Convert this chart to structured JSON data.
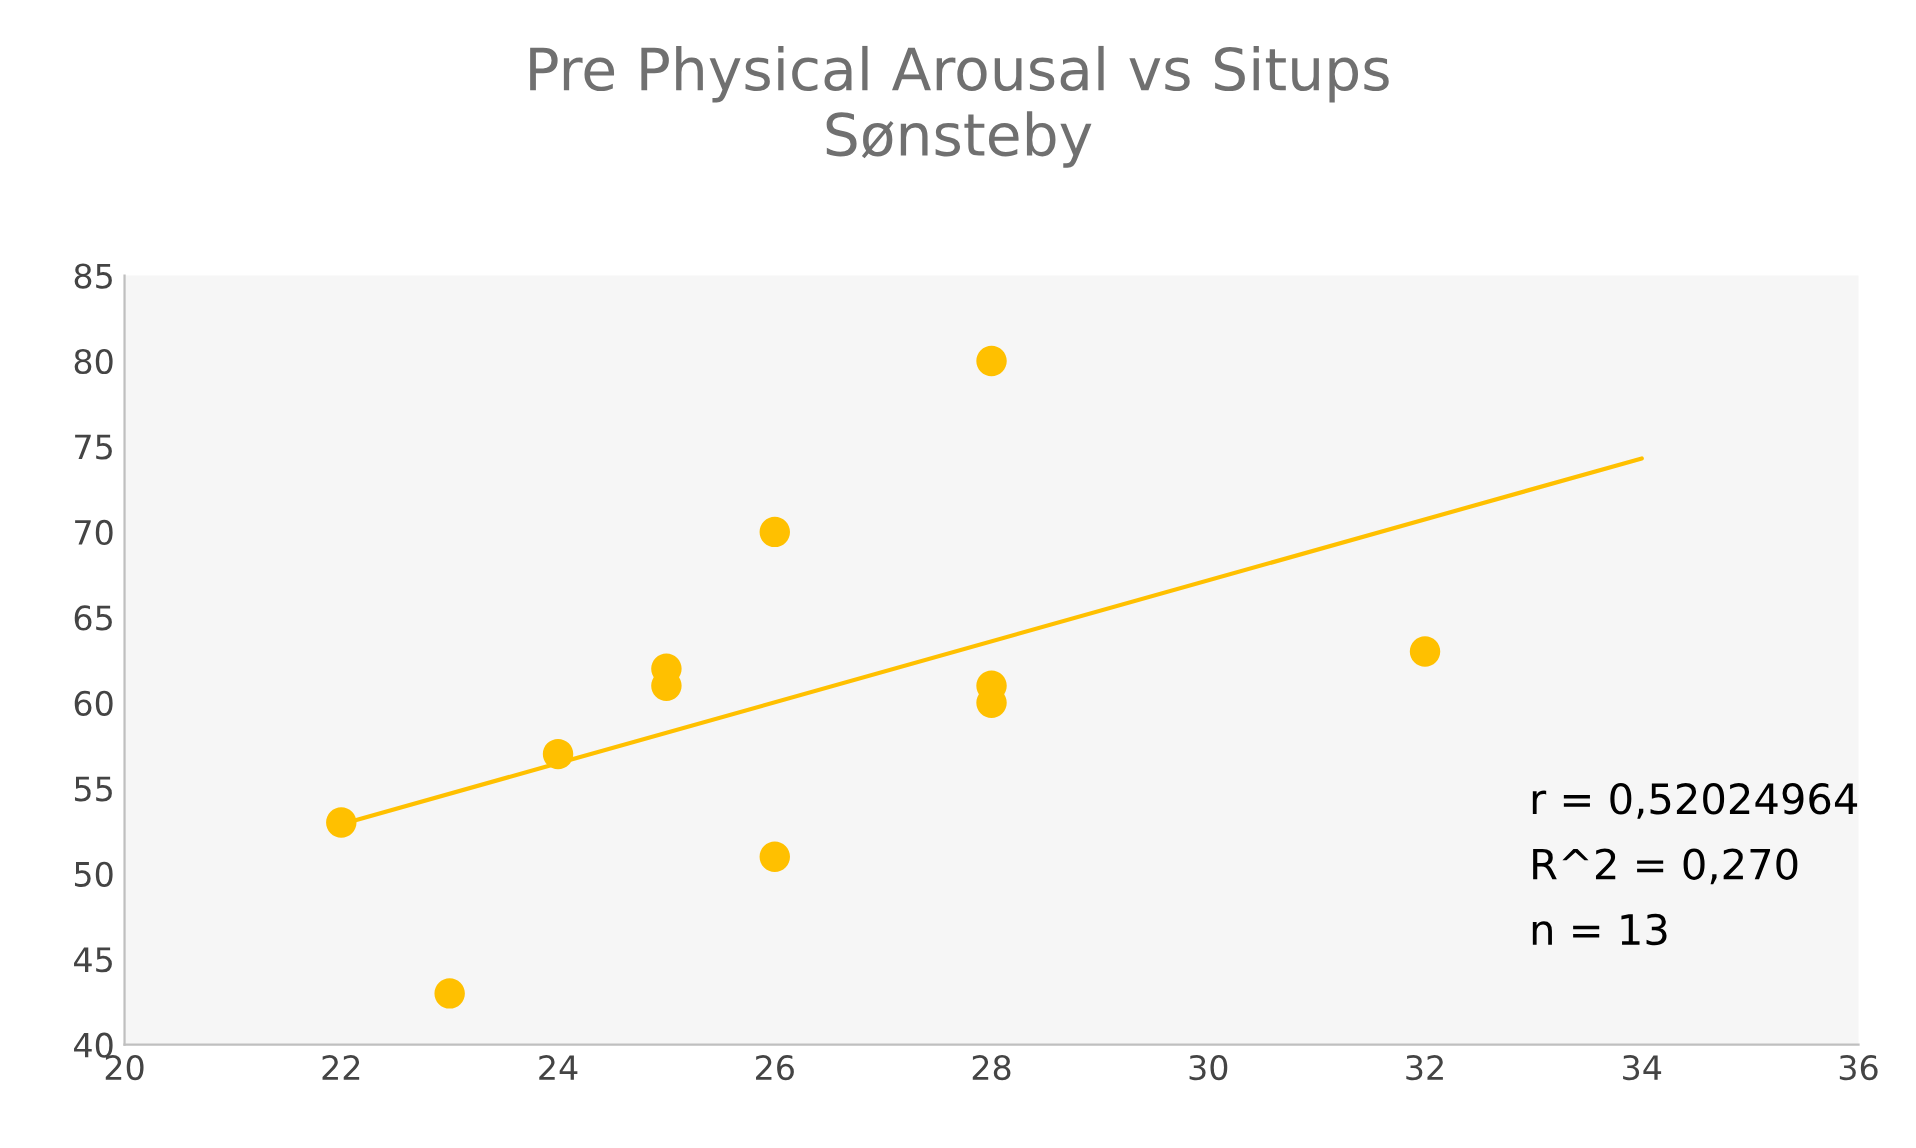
{
  "chart_data": {
    "type": "scatter",
    "title": "Pre Physical Arousal vs Situps\nSønsteby",
    "series": [
      {
        "marker": "circle",
        "color": "#ffc000",
        "x": [
          22,
          23,
          24,
          25,
          25,
          26,
          26,
          28,
          28,
          28,
          32
        ],
        "values": [
          53,
          43,
          57,
          62,
          61,
          70,
          51,
          80,
          61,
          60,
          63
        ]
      },
      {
        "type": "line",
        "color": "#ffc000",
        "x": [
          22,
          34
        ],
        "values": [
          52.9,
          74.3
        ]
      }
    ],
    "annotations": [
      "r = 0,52024964",
      "R^2 = 0,270",
      "n = 13"
    ],
    "xlim": [
      20,
      36
    ],
    "xticks": [
      20,
      22,
      24,
      26,
      28,
      30,
      32,
      34,
      36
    ],
    "ylim": [
      40,
      85
    ],
    "yticks": [
      40,
      45,
      50,
      55,
      60,
      65,
      70,
      75,
      80,
      85
    ],
    "grid": false,
    "legend": false
  }
}
